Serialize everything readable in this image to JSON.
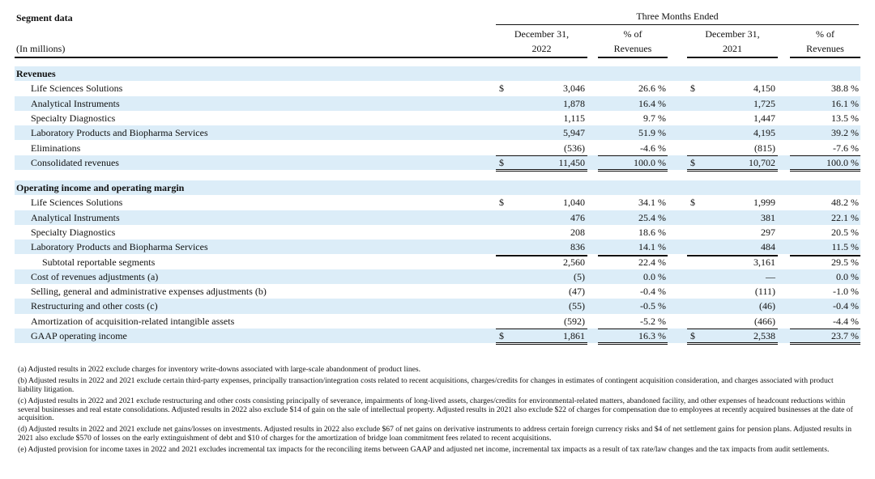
{
  "header": {
    "title": "Segment data",
    "period": "Three Months Ended",
    "units": "(In millions)",
    "columns": [
      [
        "December 31,",
        "2022"
      ],
      [
        "% of",
        "Revenues"
      ],
      [
        "December 31,",
        "2021"
      ],
      [
        "% of",
        "Revenues"
      ]
    ]
  },
  "sections": [
    {
      "title": "Revenues",
      "rows": [
        [
          "Life Sciences Solutions",
          "$",
          "3,046",
          "26.6 %",
          "$",
          "4,150",
          "38.8 %"
        ],
        [
          "Analytical Instruments",
          "",
          "1,878",
          "16.4 %",
          "",
          "1,725",
          "16.1 %"
        ],
        [
          "Specialty Diagnostics",
          "",
          "1,115",
          "9.7 %",
          "",
          "1,447",
          "13.5 %"
        ],
        [
          "Laboratory Products and Biopharma Services",
          "",
          "5,947",
          "51.9 %",
          "",
          "4,195",
          "39.2 %"
        ],
        [
          "Eliminations",
          "",
          "(536)",
          "-4.6 %",
          "",
          "(815)",
          "-7.6 %"
        ],
        [
          "Consolidated revenues",
          "$",
          "11,450",
          "100.0 %",
          "$",
          "10,702",
          "100.0 %"
        ]
      ]
    },
    {
      "title": "Operating income and operating margin",
      "rows": [
        [
          "Life Sciences Solutions",
          "$",
          "1,040",
          "34.1 %",
          "$",
          "1,999",
          "48.2 %"
        ],
        [
          "Analytical Instruments",
          "",
          "476",
          "25.4 %",
          "",
          "381",
          "22.1 %"
        ],
        [
          "Specialty Diagnostics",
          "",
          "208",
          "18.6 %",
          "",
          "297",
          "20.5 %"
        ],
        [
          "Laboratory Products and Biopharma Services",
          "",
          "836",
          "14.1 %",
          "",
          "484",
          "11.5 %"
        ],
        [
          "Subtotal reportable segments",
          "",
          "2,560",
          "22.4 %",
          "",
          "3,161",
          "29.5 %"
        ],
        [
          "Cost of revenues adjustments (a)",
          "",
          "(5)",
          "0.0 %",
          "",
          "—",
          "0.0 %"
        ],
        [
          "Selling, general and administrative expenses adjustments (b)",
          "",
          "(47)",
          "-0.4 %",
          "",
          "(111)",
          "-1.0 %"
        ],
        [
          "Restructuring and other costs (c)",
          "",
          "(55)",
          "-0.5 %",
          "",
          "(46)",
          "-0.4 %"
        ],
        [
          "Amortization of acquisition-related intangible assets",
          "",
          "(592)",
          "-5.2 %",
          "",
          "(466)",
          "-4.4 %"
        ],
        [
          "GAAP operating income",
          "$",
          "1,861",
          "16.3 %",
          "$",
          "2,538",
          "23.7 %"
        ]
      ]
    }
  ],
  "footnotes": [
    "(a) Adjusted results in 2022 exclude charges for inventory write-downs associated with large-scale abandonment of product lines.",
    "(b) Adjusted results in 2022 and 2021 exclude certain third-party expenses, principally transaction/integration costs related to recent acquisitions, charges/credits for changes in estimates of contingent acquisition consideration, and charges associated with product liability litigation.",
    "(c) Adjusted results in 2022 and 2021 exclude restructuring and other costs consisting principally of severance, impairments of long-lived assets, charges/credits for environmental-related matters, abandoned facility, and other expenses of headcount reductions within several businesses and real estate consolidations. Adjusted results in 2022 also exclude $14 of gain on the sale of intellectual property. Adjusted results in 2021 also exclude $22 of charges for compensation due to employees at recently acquired businesses at the date of acquisition.",
    "(d) Adjusted results in 2022 and 2021 exclude net gains/losses on investments. Adjusted results in 2022 also exclude $67 of net gains on derivative instruments to address certain foreign currency risks and $4 of net settlement gains for pension plans. Adjusted results in 2021 also exclude $570 of losses on the early extinguishment of debt and $10 of charges for the amortization of bridge loan commitment fees related to recent acquisitions.",
    "(e) Adjusted provision for income taxes in 2022 and 2021 excludes incremental tax impacts for the reconciling items between GAAP and adjusted net income, incremental tax impacts as a result of tax rate/law changes and the tax impacts from audit settlements."
  ]
}
